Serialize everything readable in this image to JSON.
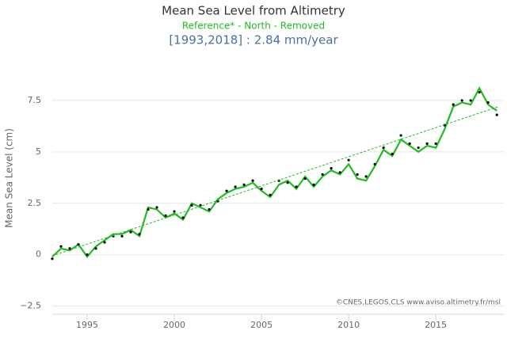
{
  "chart_data": {
    "type": "line",
    "title": "Mean Sea Level from Altimetry",
    "subtitle": "Reference* - North - Removed",
    "trend_label": "[1993,2018] : 2.84 mm/year",
    "y_label": "Mean Sea Level (cm)",
    "credit": "©CNES,LEGOS,CLS www.aviso.altimetry.fr/msl",
    "xlim": [
      1993,
      2018.9
    ],
    "xticks": [
      1995,
      2000,
      2005,
      2010,
      2015
    ],
    "ylim": [
      -2.9,
      10
    ],
    "yticks": [
      {
        "value": -2.5,
        "label": "−2.5"
      },
      0,
      2.5,
      5,
      7.5
    ],
    "grid": true,
    "series": [
      {
        "color": "#22bb22",
        "style": "line",
        "x": [
          1993,
          1993.5,
          1994,
          1994.5,
          1995,
          1995.5,
          1996,
          1996.5,
          1997,
          1997.5,
          1998,
          1998.5,
          1999,
          1999.5,
          2000,
          2000.5,
          2001,
          2001.5,
          2002,
          2002.5,
          2003,
          2003.5,
          2004,
          2004.5,
          2005,
          2005.5,
          2006,
          2006.5,
          2007,
          2007.5,
          2008,
          2008.5,
          2009,
          2009.5,
          2010,
          2010.5,
          2011,
          2011.5,
          2012,
          2012.5,
          2013,
          2013.5,
          2014,
          2014.5,
          2015,
          2015.5,
          2016,
          2016.5,
          2017,
          2017.5,
          2018,
          2018.5
        ],
        "values": [
          -0.1,
          0.3,
          0.2,
          0.5,
          -0.1,
          0.4,
          0.7,
          1.0,
          1.0,
          1.2,
          0.9,
          2.3,
          2.2,
          1.8,
          2.0,
          1.7,
          2.5,
          2.3,
          2.1,
          2.7,
          3.0,
          3.2,
          3.3,
          3.5,
          3.1,
          2.8,
          3.4,
          3.6,
          3.2,
          3.8,
          3.3,
          3.8,
          4.1,
          3.9,
          4.4,
          3.7,
          3.6,
          4.3,
          5.1,
          4.8,
          5.6,
          5.3,
          5.0,
          5.3,
          5.2,
          6.1,
          7.2,
          7.4,
          7.3,
          8.1,
          7.3,
          7.0
        ]
      },
      {
        "color": "#000000",
        "style": "dots",
        "x": [
          1993,
          1993.5,
          1994,
          1994.5,
          1995,
          1995.5,
          1996,
          1996.5,
          1997,
          1997.5,
          1998,
          1998.5,
          1999,
          1999.5,
          2000,
          2000.5,
          2001,
          2001.5,
          2002,
          2002.5,
          2003,
          2003.5,
          2004,
          2004.5,
          2005,
          2005.5,
          2006,
          2006.5,
          2007,
          2007.5,
          2008,
          2008.5,
          2009,
          2009.5,
          2010,
          2010.5,
          2011,
          2011.5,
          2012,
          2012.5,
          2013,
          2013.5,
          2014,
          2014.5,
          2015,
          2015.5,
          2016,
          2016.5,
          2017,
          2017.5,
          2018,
          2018.5
        ],
        "values": [
          -0.2,
          0.4,
          0.3,
          0.5,
          0.0,
          0.3,
          0.6,
          0.9,
          0.9,
          1.1,
          1.0,
          2.2,
          2.3,
          1.9,
          2.1,
          1.8,
          2.4,
          2.4,
          2.2,
          2.6,
          3.1,
          3.3,
          3.4,
          3.6,
          3.2,
          2.9,
          3.6,
          3.5,
          3.3,
          3.7,
          3.4,
          3.9,
          4.2,
          4.0,
          4.6,
          3.9,
          3.8,
          4.4,
          5.2,
          4.9,
          5.8,
          5.4,
          5.2,
          5.4,
          5.4,
          6.3,
          7.3,
          7.5,
          7.5,
          7.9,
          7.4,
          6.8
        ]
      },
      {
        "color": "#22bb22",
        "style": "dashed",
        "x": [
          1993.2,
          2018.6
        ],
        "values": [
          0,
          7.2
        ]
      }
    ]
  }
}
